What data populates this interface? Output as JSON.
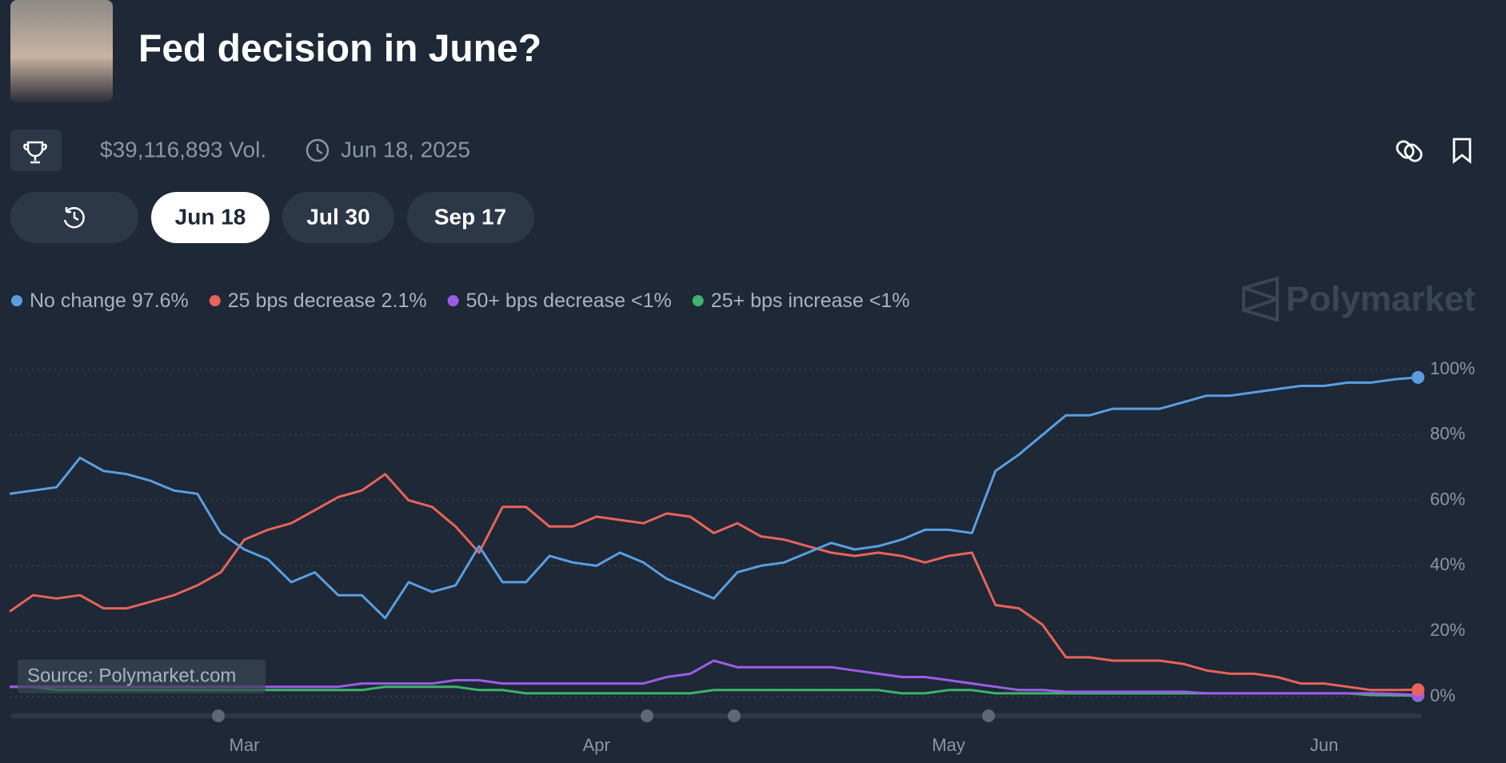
{
  "header": {
    "title": "Fed decision in June?",
    "volume": "$39,116,893 Vol.",
    "end_date": "Jun 18, 2025",
    "tabs": [
      "Jun 18",
      "Jul 30",
      "Sep 17"
    ],
    "watermark": "Polymarket",
    "source": "Source: Polymarket.com"
  },
  "chart_data": {
    "type": "line",
    "categories": [
      null,
      null,
      null,
      null,
      null,
      null,
      null,
      null,
      null,
      null,
      "Mar",
      null,
      null,
      null,
      null,
      null,
      null,
      null,
      null,
      null,
      null,
      null,
      null,
      null,
      null,
      "Apr",
      null,
      null,
      null,
      null,
      null,
      null,
      null,
      null,
      null,
      null,
      null,
      null,
      null,
      null,
      "May",
      null,
      null,
      null,
      null,
      null,
      null,
      null,
      null,
      null,
      null,
      null,
      null,
      null,
      null,
      null,
      "Jun",
      null,
      null,
      null,
      null
    ],
    "series": [
      {
        "name": "No change",
        "legend_value": "97.6%",
        "color": "#5b9ee0",
        "values": [
          62,
          63,
          64,
          73,
          69,
          68,
          66,
          63,
          62,
          50,
          45,
          42,
          35,
          38,
          31,
          31,
          24,
          35,
          32,
          34,
          46,
          35,
          35,
          43,
          41,
          40,
          44,
          41,
          36,
          33,
          30,
          38,
          40,
          41,
          44,
          47,
          45,
          46,
          48,
          51,
          51,
          50,
          69,
          74,
          80,
          86,
          86,
          88,
          88,
          88,
          90,
          92,
          92,
          93,
          94,
          95,
          95,
          96,
          96,
          97,
          97.6
        ]
      },
      {
        "name": "25 bps decrease",
        "legend_value": "2.1%",
        "color": "#e8645a",
        "values": [
          26,
          31,
          30,
          31,
          27,
          27,
          29,
          31,
          34,
          38,
          48,
          51,
          53,
          57,
          61,
          63,
          68,
          60,
          58,
          52,
          44,
          58,
          58,
          52,
          52,
          55,
          54,
          53,
          56,
          55,
          50,
          53,
          49,
          48,
          46,
          44,
          43,
          44,
          43,
          41,
          43,
          44,
          28,
          27,
          22,
          12,
          12,
          11,
          11,
          11,
          10,
          8,
          7,
          7,
          6,
          4,
          4,
          3,
          2,
          2,
          2.1
        ]
      },
      {
        "name": "50+ bps decrease",
        "legend_value": "<1%",
        "color": "#9b5de5",
        "values": [
          3,
          3,
          3,
          3,
          3,
          3,
          3,
          3,
          3,
          3,
          3,
          3,
          3,
          3,
          3,
          4,
          4,
          4,
          4,
          5,
          5,
          4,
          4,
          4,
          4,
          4,
          4,
          4,
          6,
          7,
          11,
          9,
          9,
          9,
          9,
          9,
          8,
          7,
          6,
          6,
          5,
          4,
          3,
          2,
          2,
          1.5,
          1.5,
          1.5,
          1.5,
          1.5,
          1.5,
          1,
          1,
          1,
          1,
          1,
          1,
          1,
          1,
          0.8,
          0.5
        ]
      },
      {
        "name": "25+ bps increase",
        "legend_value": "<1%",
        "color": "#3fb36b",
        "values": [
          3,
          3,
          2,
          2,
          2,
          2,
          2,
          2,
          2,
          2,
          2,
          2,
          2,
          2,
          2,
          2,
          3,
          3,
          3,
          3,
          2,
          2,
          1,
          1,
          1,
          1,
          1,
          1,
          1,
          1,
          2,
          2,
          2,
          2,
          2,
          2,
          2,
          2,
          1,
          1,
          2,
          2,
          1,
          1,
          1,
          1,
          1,
          1,
          1,
          1,
          1,
          1,
          1,
          1,
          1,
          1,
          1,
          1,
          0.5,
          0.4,
          0.3
        ]
      }
    ],
    "ylim": [
      0,
      100
    ],
    "yticks": [
      {
        "value": 0,
        "label": "0%"
      },
      {
        "value": 20,
        "label": "20%"
      },
      {
        "value": 40,
        "label": "40%"
      },
      {
        "value": 60,
        "label": "60%"
      },
      {
        "value": 80,
        "label": "80%"
      },
      {
        "value": 100,
        "label": "100%"
      }
    ],
    "grid": true
  }
}
